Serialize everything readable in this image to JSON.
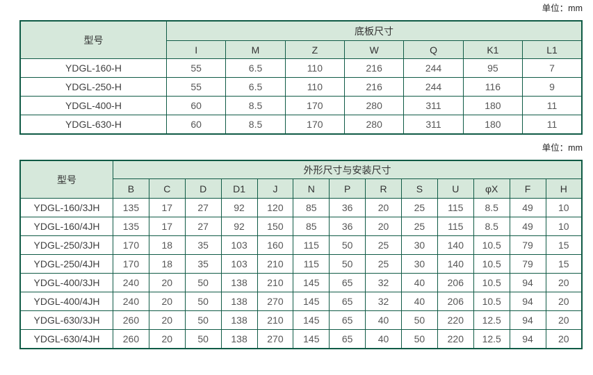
{
  "unit_label": "单位：mm",
  "colors": {
    "border": "#0f5a45",
    "header_bg": "#d6e8db"
  },
  "table1": {
    "model_header": "型号",
    "group_header": "底板尺寸",
    "columns": [
      "I",
      "M",
      "Z",
      "W",
      "Q",
      "K1",
      "L1"
    ],
    "rows": [
      {
        "model": "YDGL-160-H",
        "values": [
          "55",
          "6.5",
          "110",
          "216",
          "244",
          "95",
          "7"
        ]
      },
      {
        "model": "YDGL-250-H",
        "values": [
          "55",
          "6.5",
          "110",
          "216",
          "244",
          "116",
          "9"
        ]
      },
      {
        "model": "YDGL-400-H",
        "values": [
          "60",
          "8.5",
          "170",
          "280",
          "311",
          "180",
          "11"
        ]
      },
      {
        "model": "YDGL-630-H",
        "values": [
          "60",
          "8.5",
          "170",
          "280",
          "311",
          "180",
          "11"
        ]
      }
    ]
  },
  "table2": {
    "model_header": "型号",
    "group_header": "外形尺寸与安装尺寸",
    "columns": [
      "B",
      "C",
      "D",
      "D1",
      "J",
      "N",
      "P",
      "R",
      "S",
      "U",
      "φX",
      "F",
      "H"
    ],
    "rows": [
      {
        "model": "YDGL-160/3JH",
        "values": [
          "135",
          "17",
          "27",
          "92",
          "120",
          "85",
          "36",
          "20",
          "25",
          "115",
          "8.5",
          "49",
          "10"
        ]
      },
      {
        "model": "YDGL-160/4JH",
        "values": [
          "135",
          "17",
          "27",
          "92",
          "150",
          "85",
          "36",
          "20",
          "25",
          "115",
          "8.5",
          "49",
          "10"
        ]
      },
      {
        "model": "YDGL-250/3JH",
        "values": [
          "170",
          "18",
          "35",
          "103",
          "160",
          "115",
          "50",
          "25",
          "30",
          "140",
          "10.5",
          "79",
          "15"
        ]
      },
      {
        "model": "YDGL-250/4JH",
        "values": [
          "170",
          "18",
          "35",
          "103",
          "210",
          "115",
          "50",
          "25",
          "30",
          "140",
          "10.5",
          "79",
          "15"
        ]
      },
      {
        "model": "YDGL-400/3JH",
        "values": [
          "240",
          "20",
          "50",
          "138",
          "210",
          "145",
          "65",
          "32",
          "40",
          "206",
          "10.5",
          "94",
          "20"
        ]
      },
      {
        "model": "YDGL-400/4JH",
        "values": [
          "240",
          "20",
          "50",
          "138",
          "270",
          "145",
          "65",
          "32",
          "40",
          "206",
          "10.5",
          "94",
          "20"
        ]
      },
      {
        "model": "YDGL-630/3JH",
        "values": [
          "260",
          "20",
          "50",
          "138",
          "210",
          "145",
          "65",
          "40",
          "50",
          "220",
          "12.5",
          "94",
          "20"
        ]
      },
      {
        "model": "YDGL-630/4JH",
        "values": [
          "260",
          "20",
          "50",
          "138",
          "270",
          "145",
          "65",
          "40",
          "50",
          "220",
          "12.5",
          "94",
          "20"
        ]
      }
    ]
  }
}
